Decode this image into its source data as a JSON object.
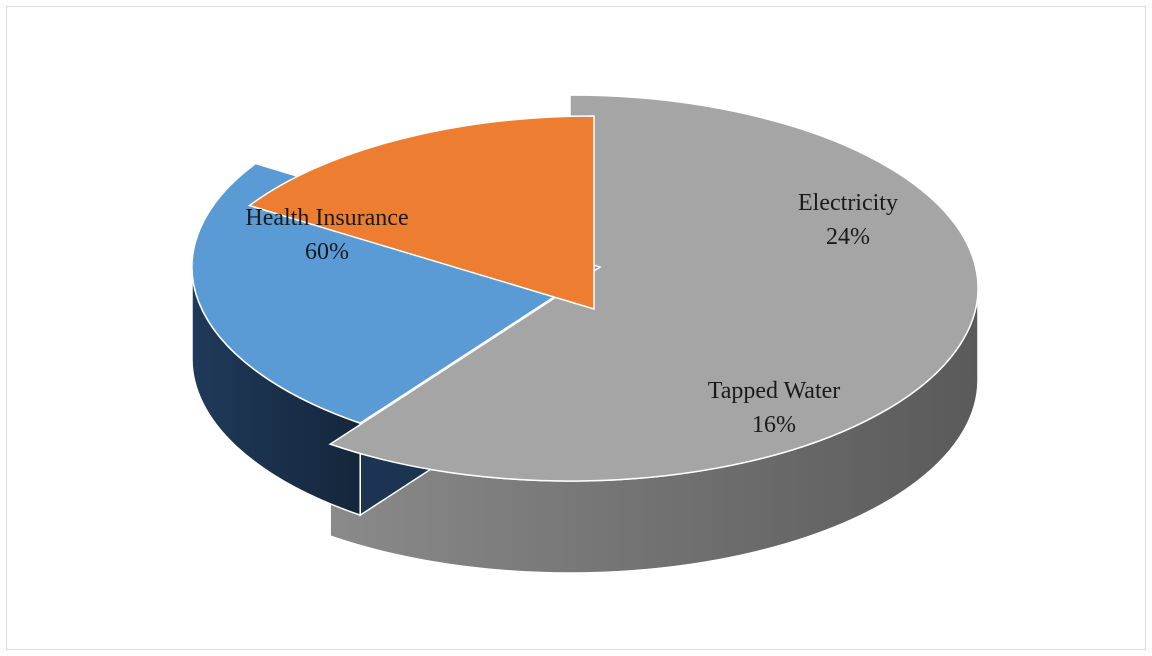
{
  "chart_data": {
    "type": "pie",
    "style": "3d-exploded",
    "title": "",
    "slices": [
      {
        "label": "Health Insurance",
        "value": 60,
        "display": "60%",
        "color": "#a5a5a5",
        "side_color": "#8a8a8a"
      },
      {
        "label": "Electricity",
        "value": 24,
        "display": "24%",
        "color": "#5b9bd5",
        "side_color": "#1f3a5a"
      },
      {
        "label": "Tapped Water",
        "value": 16,
        "display": "16%",
        "color": "#ed7d31",
        "side_color": "#6b3614"
      }
    ],
    "legend": "none",
    "data_labels": "inside"
  }
}
